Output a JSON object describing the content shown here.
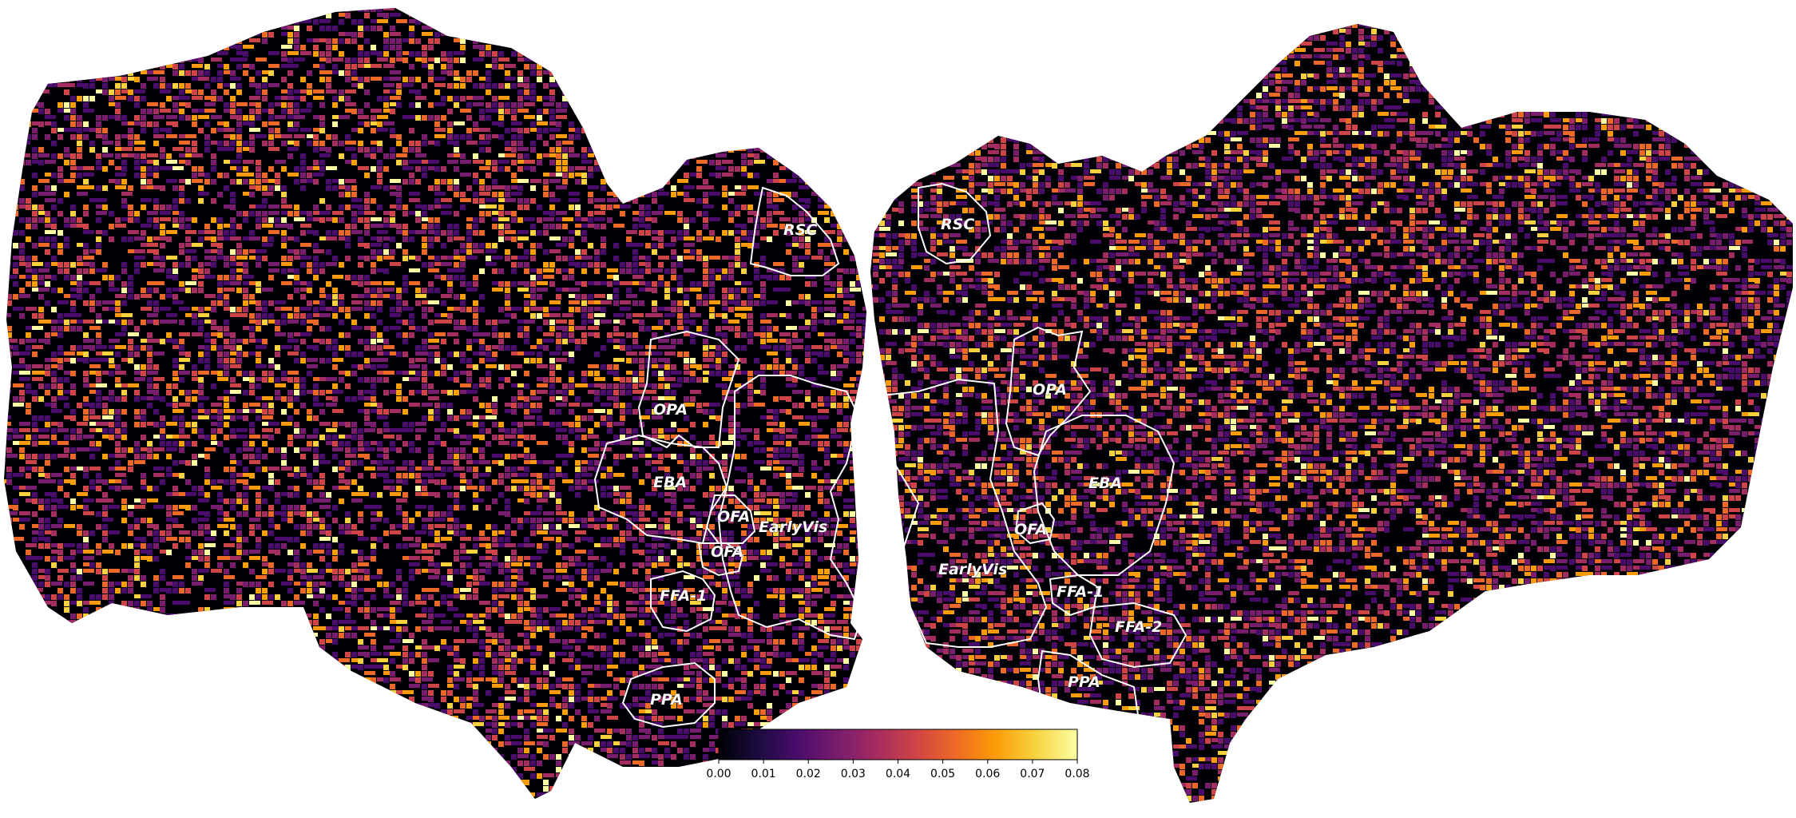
{
  "figure": {
    "type": "cortical-flatmap",
    "colormap": "inferno",
    "background": "#ffffff",
    "outline_color": "#ffffff"
  },
  "left_hemisphere": {
    "roi_labels": [
      "RSC",
      "OPA",
      "EBA",
      "OFA",
      "EarlyVis",
      "OFA",
      "FFA-1",
      "PPA"
    ]
  },
  "right_hemisphere": {
    "roi_labels": [
      "RSC",
      "OPA",
      "EBA",
      "OFA",
      "EarlyVis",
      "FFA-1",
      "FFA-2",
      "PPA"
    ]
  },
  "colorbar": {
    "min": 0.0,
    "max": 0.08,
    "tick_labels": [
      "0.00",
      "0.01",
      "0.02",
      "0.03",
      "0.04",
      "0.05",
      "0.06",
      "0.07",
      "0.08"
    ],
    "colors": [
      "#000004",
      "#1b0c41",
      "#4a0c6b",
      "#781c6d",
      "#a52c60",
      "#cf4446",
      "#ed6925",
      "#fb9b06",
      "#f7d13d",
      "#fcffa4"
    ]
  }
}
